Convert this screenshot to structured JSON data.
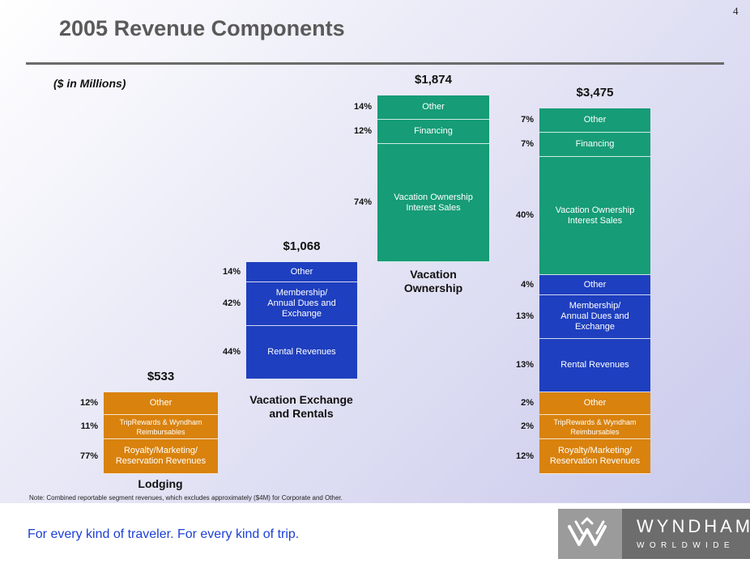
{
  "slide": {
    "page_number": "4",
    "title": "2005 Revenue Components",
    "units_note": "($ in Millions)",
    "footnote": "Note: Combined reportable segment revenues, which excludes approximately ($4M) for Corporate and Other.",
    "tagline": "For every kind of traveler. For every kind of trip.",
    "brand_name": "WYNDHAM",
    "brand_sub": "WORLDWIDE",
    "brand_icon": "wyndham-w-logo-icon"
  },
  "colors": {
    "orange": "#d9820d",
    "blue": "#1e3fbf",
    "teal": "#169c76",
    "tagline": "#1c3fd6"
  },
  "chart_data": {
    "type": "bar",
    "title": "2005 Revenue Components",
    "ylabel": "($ in Millions)",
    "xlabel": "",
    "stacked": true,
    "bars": [
      {
        "category": "Lodging",
        "total": "$533",
        "total_value": 533,
        "segments": [
          {
            "label": "Royalty/Marketing/\nReservation Revenues",
            "pct_label": "77%",
            "pct": 77,
            "color": "orange"
          },
          {
            "label": "TripRewards & Wyndham\nReimbursables",
            "pct_label": "11%",
            "pct": 11,
            "color": "orange"
          },
          {
            "label": "Other",
            "pct_label": "12%",
            "pct": 12,
            "color": "orange"
          }
        ]
      },
      {
        "category": "Vacation Exchange\nand Rentals",
        "total": "$1,068",
        "total_value": 1068,
        "segments": [
          {
            "label": "Rental Revenues",
            "pct_label": "44%",
            "pct": 44,
            "color": "blue"
          },
          {
            "label": "Membership/\nAnnual Dues and\nExchange",
            "pct_label": "42%",
            "pct": 42,
            "color": "blue"
          },
          {
            "label": "Other",
            "pct_label": "14%",
            "pct": 14,
            "color": "blue"
          }
        ]
      },
      {
        "category": "Vacation\nOwnership",
        "total": "$1,874",
        "total_value": 1874,
        "segments": [
          {
            "label": "Vacation Ownership\nInterest Sales",
            "pct_label": "74%",
            "pct": 74,
            "color": "teal"
          },
          {
            "label": "Financing",
            "pct_label": "12%",
            "pct": 12,
            "color": "teal"
          },
          {
            "label": "Other",
            "pct_label": "14%",
            "pct": 14,
            "color": "teal"
          }
        ]
      },
      {
        "category": "",
        "total": "$3,475",
        "total_value": 3475,
        "segments": [
          {
            "label": "Royalty/Marketing/\nReservation Revenues",
            "pct_label": "12%",
            "pct": 12,
            "color": "orange"
          },
          {
            "label": "TripRewards & Wyndham\nReimbursables",
            "pct_label": "2%",
            "pct": 2,
            "color": "orange"
          },
          {
            "label": "Other",
            "pct_label": "2%",
            "pct": 2,
            "color": "orange"
          },
          {
            "label": "Rental Revenues",
            "pct_label": "13%",
            "pct": 13,
            "color": "blue"
          },
          {
            "label": "Membership/\nAnnual Dues and\nExchange",
            "pct_label": "13%",
            "pct": 13,
            "color": "blue"
          },
          {
            "label": "Other",
            "pct_label": "4%",
            "pct": 4,
            "color": "blue"
          },
          {
            "label": "Vacation Ownership\nInterest Sales",
            "pct_label": "40%",
            "pct": 40,
            "color": "teal"
          },
          {
            "label": "Financing",
            "pct_label": "7%",
            "pct": 7,
            "color": "teal"
          },
          {
            "label": "Other",
            "pct_label": "7%",
            "pct": 7,
            "color": "teal"
          }
        ]
      }
    ]
  }
}
